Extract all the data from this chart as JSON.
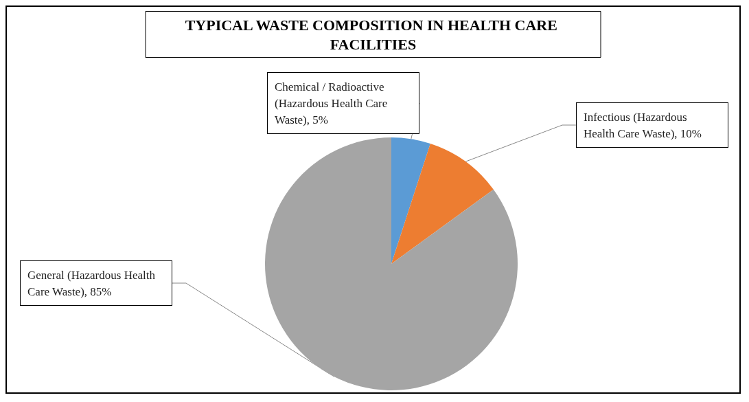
{
  "chart_data": {
    "type": "pie",
    "title": "TYPICAL WASTE COMPOSITION IN HEALTH CARE FACILITIES",
    "categories": [
      "Chemical / Radioactive (Hazardous Health Care Waste)",
      "Infectious (Hazardous Health Care Waste)",
      "General (Hazardous Health Care Waste)"
    ],
    "values": [
      5,
      10,
      85
    ],
    "value_labels": [
      "5%",
      "10%",
      "85%"
    ],
    "colors": [
      "#5b9bd5",
      "#ed7d31",
      "#a5a5a5"
    ],
    "legend": false
  }
}
